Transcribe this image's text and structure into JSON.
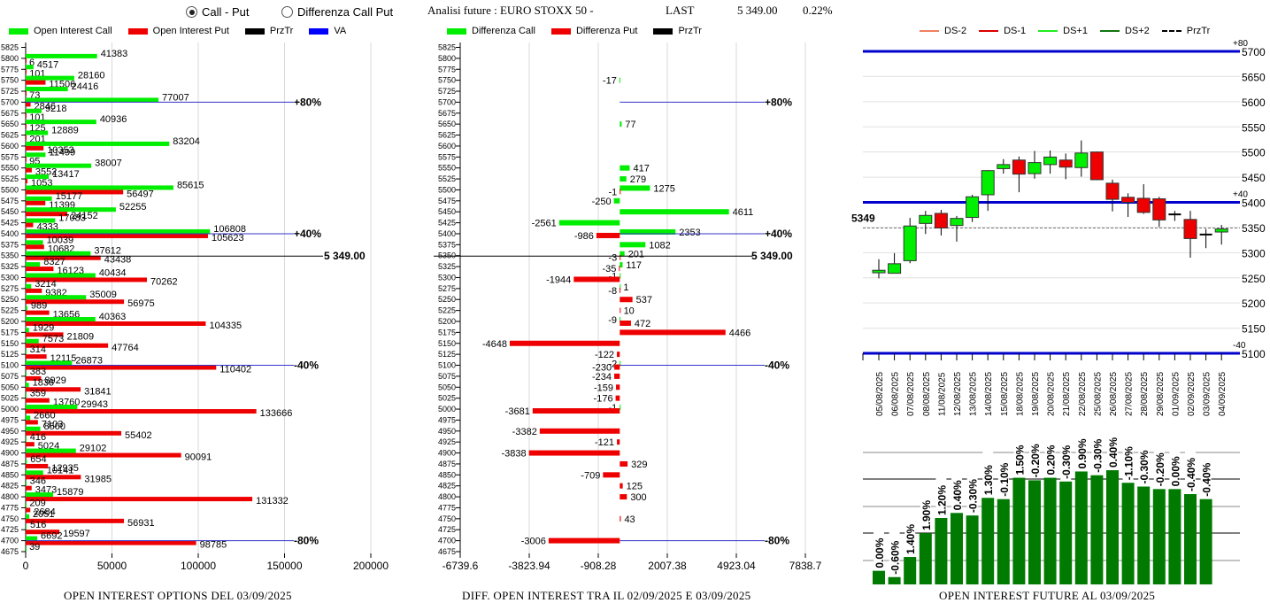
{
  "header": {
    "radio_options": [
      {
        "label": "Call - Put",
        "selected": true
      },
      {
        "label": "Differenza Call Put",
        "selected": false
      }
    ],
    "title": "Analisi future : EURO STOXX 50 -",
    "last_label": "LAST",
    "last_value": "5 349.00",
    "change_pct": "0.22%"
  },
  "colors": {
    "call": "#00ee00",
    "put": "#ee0000",
    "przTr": "#000000",
    "va": "#0000ff",
    "candle_up": "#00ee00",
    "candle_down": "#ee0000",
    "oi_bar": "#007a00"
  },
  "chart_data": [
    {
      "type": "bar",
      "orientation": "horizontal",
      "title": "OPEN INTEREST OPTIONS DEL 03/09/2025",
      "legend": [
        "Open Interest Call",
        "Open Interest Put",
        "PrzTr",
        "VA"
      ],
      "categories": [
        5825,
        5800,
        5775,
        5750,
        5725,
        5700,
        5675,
        5650,
        5625,
        5600,
        5575,
        5550,
        5525,
        5500,
        5475,
        5450,
        5425,
        5400,
        5375,
        5350,
        5325,
        5300,
        5275,
        5250,
        5225,
        5200,
        5175,
        5150,
        5125,
        5100,
        5075,
        5050,
        5025,
        5000,
        4975,
        4950,
        4925,
        4900,
        4875,
        4850,
        4825,
        4800,
        4775,
        4750,
        4725,
        4700,
        4675
      ],
      "series": [
        {
          "name": "Open Interest Call",
          "values": [
            null,
            41383,
            4517,
            28160,
            24416,
            77007,
            9218,
            40936,
            12889,
            83204,
            11499,
            38007,
            13417,
            85615,
            15177,
            52255,
            17083,
            106808,
            10039,
            37612,
            8327,
            40434,
            3214,
            35009,
            989,
            40363,
            1929,
            7573,
            314,
            26873,
            383,
            1836,
            359,
            29943,
            2660,
            8500,
            416,
            29102,
            654,
            10141,
            346,
            15879,
            209,
            2051,
            516,
            6692,
            39
          ]
        },
        {
          "name": "Open Interest Put",
          "values": [
            null,
            6,
            101,
            11506,
            73,
            2846,
            101,
            125,
            201,
            10353,
            95,
            3552,
            1053,
            56497,
            11399,
            24152,
            4333,
            105623,
            10682,
            43438,
            16123,
            70262,
            9382,
            56975,
            13656,
            104335,
            21809,
            47764,
            12115,
            110402,
            8929,
            31841,
            13760,
            133666,
            7103,
            55402,
            5024,
            90091,
            12935,
            31985,
            3473,
            131332,
            2684,
            56931,
            19597,
            98785,
            null
          ]
        }
      ],
      "przTr": {
        "value": 5349,
        "label": "5 349.00"
      },
      "va_lines": [
        {
          "strike": 5700,
          "label": "+80%"
        },
        {
          "strike": 5400,
          "label": "+40%"
        },
        {
          "strike": 5100,
          "label": "-40%"
        },
        {
          "strike": 4700,
          "label": "-80%"
        }
      ],
      "xticks": [
        0,
        50000,
        100000,
        150000,
        200000
      ],
      "xlim": [
        0,
        230000
      ]
    },
    {
      "type": "bar",
      "orientation": "horizontal",
      "title": "DIFF. OPEN INTEREST TRA IL 02/09/2025 E 03/09/2025",
      "legend": [
        "Differenza Call",
        "Differenza Put",
        "PrzTr"
      ],
      "categories": [
        5825,
        5800,
        5775,
        5750,
        5725,
        5700,
        5675,
        5650,
        5625,
        5600,
        5575,
        5550,
        5525,
        5500,
        5475,
        5450,
        5425,
        5400,
        5375,
        5350,
        5325,
        5300,
        5275,
        5250,
        5225,
        5200,
        5175,
        5150,
        5125,
        5100,
        5075,
        5050,
        5025,
        5000,
        4975,
        4950,
        4925,
        4900,
        4875,
        4850,
        4825,
        4800,
        4775,
        4750,
        4725,
        4700,
        4675
      ],
      "series": [
        {
          "name": "Differenza Call",
          "values": [
            null,
            null,
            null,
            -17,
            null,
            null,
            null,
            77,
            null,
            null,
            null,
            417,
            279,
            1275,
            -250,
            4611,
            -2561,
            2353,
            1082,
            201,
            117,
            -1,
            1,
            null,
            null,
            -9,
            null,
            null,
            null,
            -2,
            null,
            null,
            null,
            -1,
            null,
            null,
            null,
            null,
            null,
            null,
            null,
            null,
            null,
            null,
            null,
            null,
            null
          ]
        },
        {
          "name": "Differenza Put",
          "values": [
            null,
            null,
            null,
            null,
            null,
            null,
            null,
            null,
            null,
            null,
            null,
            null,
            null,
            -1,
            null,
            null,
            null,
            -986,
            null,
            -3,
            -35,
            -1944,
            -8,
            537,
            10,
            472,
            4466,
            -4648,
            -122,
            -230,
            -234,
            -159,
            -176,
            -3681,
            null,
            -3382,
            -121,
            -3838,
            329,
            -709,
            125,
            300,
            null,
            43,
            null,
            -3006,
            null
          ]
        }
      ],
      "przTr": {
        "value": 5349,
        "label": "5 349.00"
      },
      "va_lines": [
        {
          "strike": 5700,
          "label": "+80%"
        },
        {
          "strike": 5400,
          "label": "+40%"
        },
        {
          "strike": 5100,
          "label": "-40%"
        },
        {
          "strike": 4700,
          "label": "-80%"
        }
      ],
      "xticks": [
        "-6739.6",
        "-3823.94",
        "-908.28",
        "2007.38",
        "4923.04",
        "7838.7"
      ],
      "xlim": [
        -6739.6,
        7838.7
      ]
    },
    {
      "type": "candlestick",
      "title": "",
      "legend": [
        "DS-2",
        "DS-1",
        "DS+1",
        "DS+2",
        "PrzTr"
      ],
      "legend_colors": [
        "#f08060",
        "#dd0000",
        "#22ee22",
        "#117711",
        "#000000"
      ],
      "x": [
        "05/08/2025",
        "06/08/2025",
        "07/08/2025",
        "08/08/2025",
        "11/08/2025",
        "12/08/2025",
        "13/08/2025",
        "14/08/2025",
        "15/08/2025",
        "18/08/2025",
        "19/08/2025",
        "20/08/2025",
        "21/08/2025",
        "22/08/2025",
        "25/08/2025",
        "26/08/2025",
        "27/08/2025",
        "28/08/2025",
        "29/08/2025",
        "01/09/2025",
        "02/09/2025",
        "03/09/2025",
        "04/09/2025"
      ],
      "ohlc": [
        [
          5260,
          5287,
          5249,
          5265
        ],
        [
          5259,
          5299,
          5259,
          5278
        ],
        [
          5284,
          5369,
          5279,
          5353
        ],
        [
          5358,
          5383,
          5337,
          5374
        ],
        [
          5378,
          5385,
          5334,
          5349
        ],
        [
          5354,
          5373,
          5322,
          5368
        ],
        [
          5370,
          5415,
          5361,
          5411
        ],
        [
          5415,
          5464,
          5383,
          5463
        ],
        [
          5467,
          5486,
          5457,
          5475
        ],
        [
          5484,
          5491,
          5420,
          5456
        ],
        [
          5457,
          5502,
          5447,
          5479
        ],
        [
          5475,
          5503,
          5457,
          5490
        ],
        [
          5484,
          5497,
          5446,
          5470
        ],
        [
          5469,
          5523,
          5451,
          5498
        ],
        [
          5500,
          5501,
          5444,
          5445
        ],
        [
          5438,
          5445,
          5382,
          5406
        ],
        [
          5410,
          5418,
          5371,
          5400
        ],
        [
          5408,
          5436,
          5377,
          5380
        ],
        [
          5407,
          5411,
          5351,
          5365
        ],
        [
          5376,
          5383,
          5363,
          5376
        ],
        [
          5366,
          5383,
          5290,
          5328
        ],
        [
          5336,
          5347,
          5309,
          5336
        ],
        [
          5341,
          5355,
          5316,
          5347
        ]
      ],
      "przTr": {
        "value": 5349,
        "label": "5349"
      },
      "levels": [
        {
          "value": 5700,
          "label": "+80"
        },
        {
          "value": 5400,
          "label": "+40"
        },
        {
          "value": 5100,
          "label": "-40"
        }
      ],
      "yticks": [
        5100,
        5150,
        5200,
        5250,
        5300,
        5350,
        5400,
        5450,
        5500,
        5550,
        5600,
        5650,
        5700
      ],
      "ylim": [
        5100,
        5700
      ]
    },
    {
      "type": "bar",
      "title": "OPEN INTEREST FUTURE AL 03/09/2025",
      "categories": [
        "05/08/2025",
        "06/08/2025",
        "07/08/2025",
        "08/08/2025",
        "11/08/2025",
        "12/08/2025",
        "13/08/2025",
        "14/08/2025",
        "15/08/2025",
        "18/08/2025",
        "19/08/2025",
        "20/08/2025",
        "21/08/2025",
        "22/08/2025",
        "25/08/2025",
        "26/08/2025",
        "27/08/2025",
        "28/08/2025",
        "29/08/2025",
        "01/09/2025",
        "02/09/2025",
        "03/09/2025",
        "04/09/2025"
      ],
      "values": [
        8,
        3,
        19,
        38,
        50,
        54,
        52,
        66,
        65,
        82,
        80,
        82,
        79,
        87,
        84,
        88,
        78,
        75,
        73,
        73,
        69,
        65,
        null
      ],
      "value_units": "relative (no axis shown)",
      "labels": [
        "0.00%",
        "-0.60%",
        "1.40%",
        "1.90%",
        "1.20%",
        "0.40%",
        "-0.30%",
        "1.30%",
        "-0.10%",
        "1.50%",
        "-0.20%",
        "0.20%",
        "-0.30%",
        "0.90%",
        "-0.30%",
        "0.40%",
        "-1.10%",
        "-0.30%",
        "-0.20%",
        "0.00%",
        "-0.40%",
        "-0.40%",
        ""
      ]
    }
  ]
}
